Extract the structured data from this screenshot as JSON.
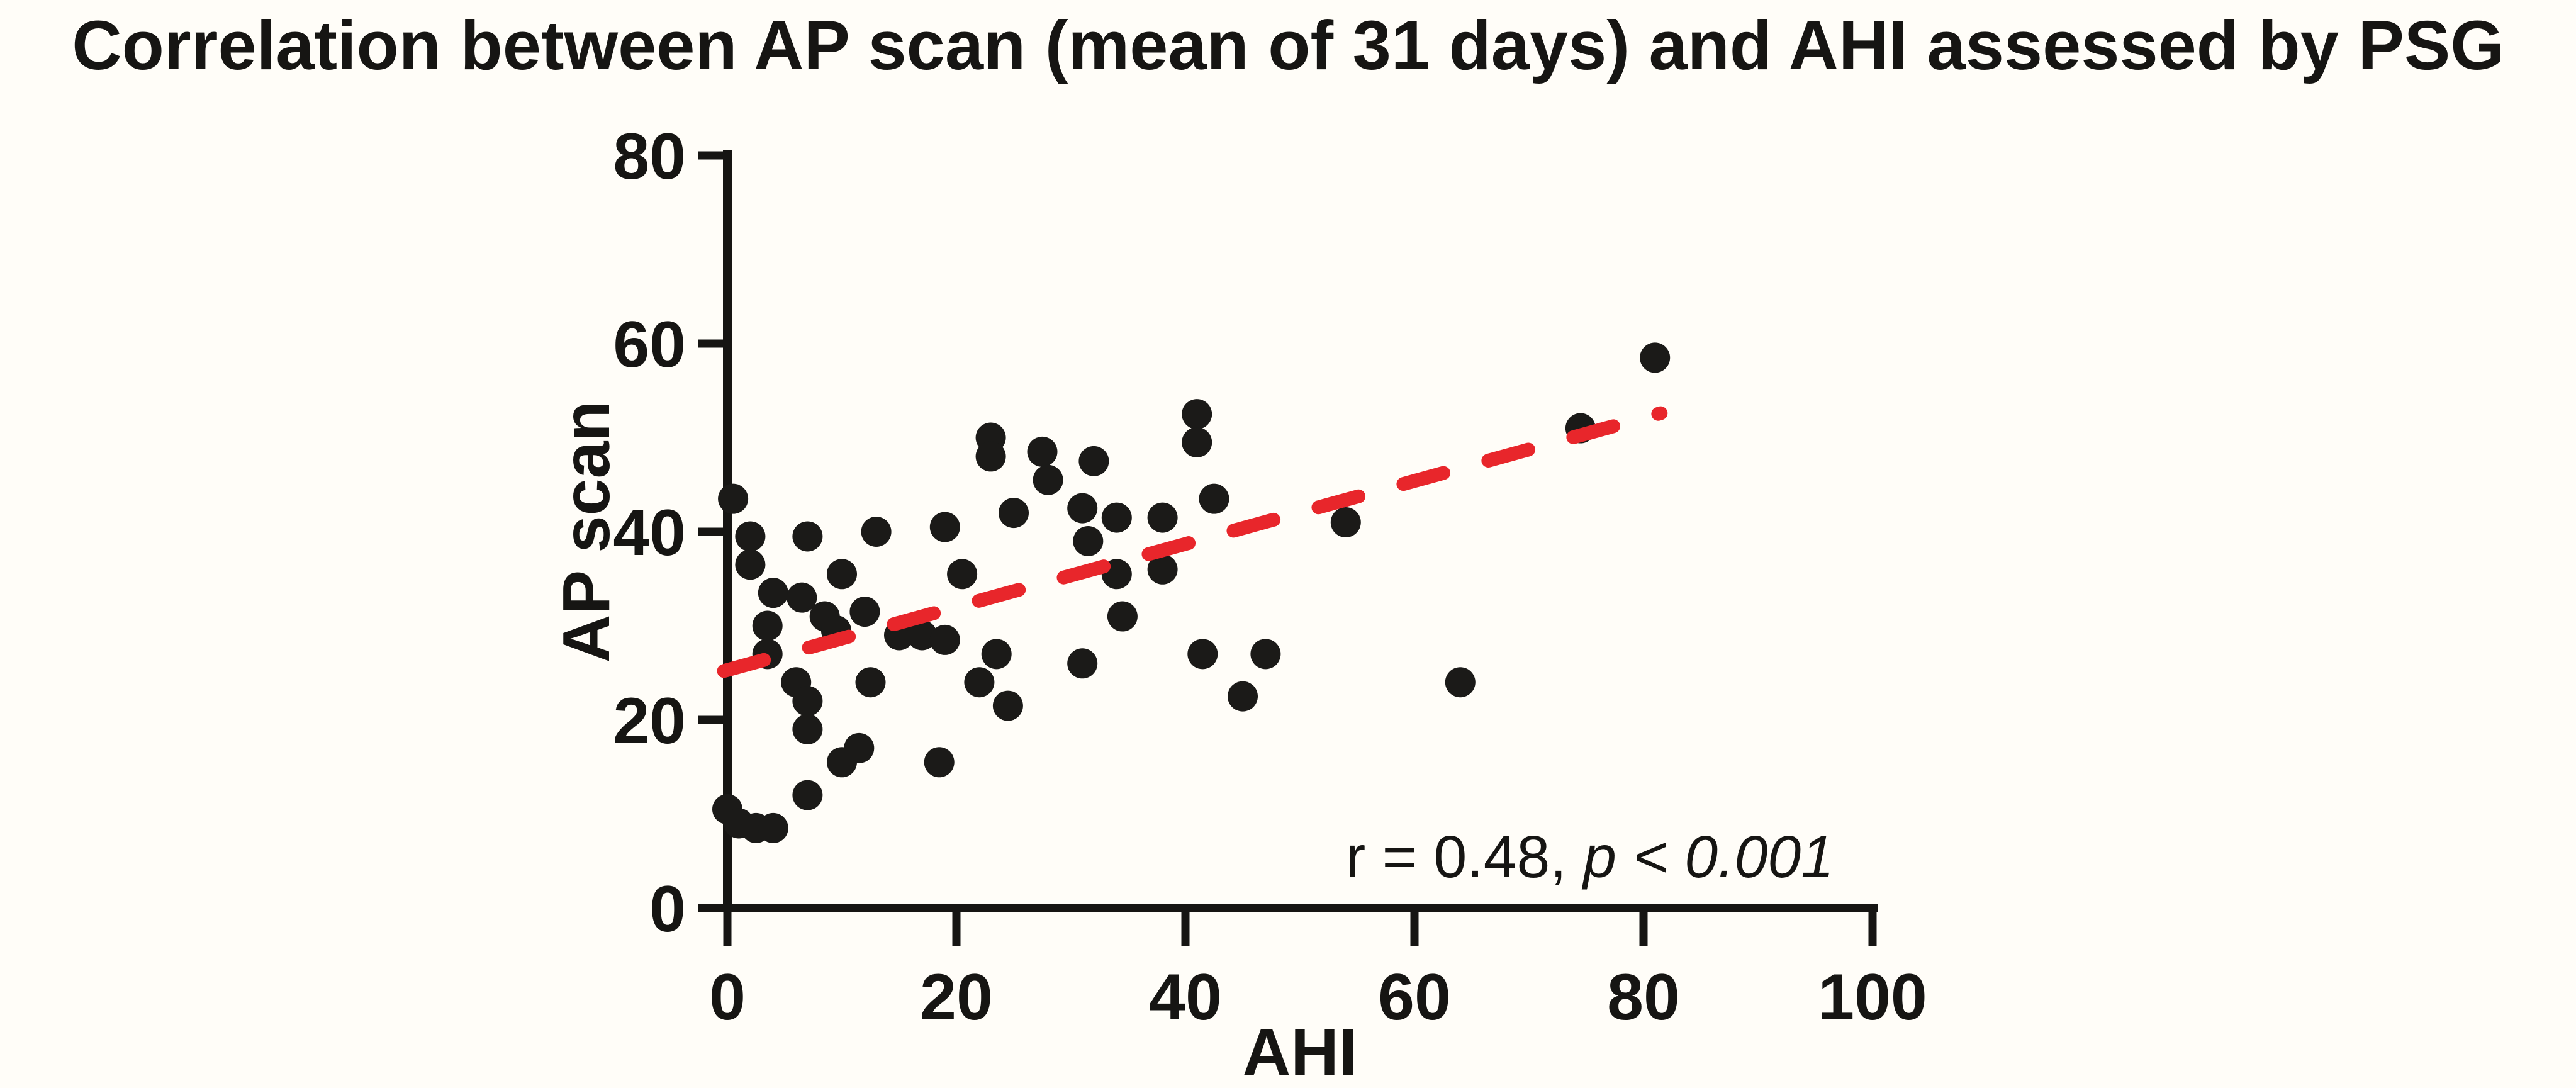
{
  "title": "Correlation between AP scan (mean of 31 days) and AHI assessed by PSG",
  "chart_data": {
    "type": "scatter",
    "title": "Correlation between AP scan (mean of 31 days) and AHI assessed by PSG",
    "xlabel": "AHI",
    "ylabel": "AP scan",
    "xlim": [
      0,
      100
    ],
    "ylim": [
      0,
      80
    ],
    "xticks": [
      0,
      20,
      40,
      60,
      80,
      100
    ],
    "yticks": [
      0,
      20,
      40,
      60,
      80
    ],
    "grid": false,
    "legend": "none",
    "annotation": {
      "prefix": "r = 0.48, ",
      "italic": "p < 0.001"
    },
    "marker": {
      "shape": "circle",
      "color": "#1b1a18",
      "radius_px": 24
    },
    "trend_line": {
      "style": "dashed",
      "color": "#e8262b",
      "x1": -0.3,
      "y1": 25.2,
      "x2": 81.5,
      "y2": 52.6
    },
    "points": [
      [
        0,
        10.5
      ],
      [
        1,
        9
      ],
      [
        2.5,
        8.5
      ],
      [
        4,
        8.5
      ],
      [
        0.5,
        43.5
      ],
      [
        2,
        39.5
      ],
      [
        2,
        36.5
      ],
      [
        4,
        33.5
      ],
      [
        3.5,
        30
      ],
      [
        3.5,
        27
      ],
      [
        6.5,
        33
      ],
      [
        8.5,
        31
      ],
      [
        9.5,
        29.5
      ],
      [
        12,
        31.5
      ],
      [
        10,
        35.5
      ],
      [
        7,
        39.5
      ],
      [
        13,
        40
      ],
      [
        19,
        40.5
      ],
      [
        20.5,
        35.5
      ],
      [
        6,
        24
      ],
      [
        7,
        22
      ],
      [
        7,
        19
      ],
      [
        7,
        12
      ],
      [
        10,
        15.5
      ],
      [
        11.5,
        17
      ],
      [
        12.5,
        24
      ],
      [
        18.5,
        15.5
      ],
      [
        15,
        29
      ],
      [
        17,
        29
      ],
      [
        19,
        28.5
      ],
      [
        22,
        24
      ],
      [
        23.5,
        27
      ],
      [
        24.5,
        21.5
      ],
      [
        23,
        50
      ],
      [
        23,
        48
      ],
      [
        25,
        42
      ],
      [
        27.5,
        48.5
      ],
      [
        28,
        45.5
      ],
      [
        31,
        42.5
      ],
      [
        31.5,
        39
      ],
      [
        34,
        41.5
      ],
      [
        32,
        47.5
      ],
      [
        38,
        41.5
      ],
      [
        34,
        35.5
      ],
      [
        38,
        36
      ],
      [
        34.5,
        31
      ],
      [
        31,
        26
      ],
      [
        41,
        52.5
      ],
      [
        41,
        49.5
      ],
      [
        42.5,
        43.5
      ],
      [
        41.5,
        27
      ],
      [
        45,
        22.5
      ],
      [
        47,
        27
      ],
      [
        54,
        41
      ],
      [
        64,
        24
      ],
      [
        74.5,
        51
      ],
      [
        81,
        58.5
      ]
    ]
  }
}
